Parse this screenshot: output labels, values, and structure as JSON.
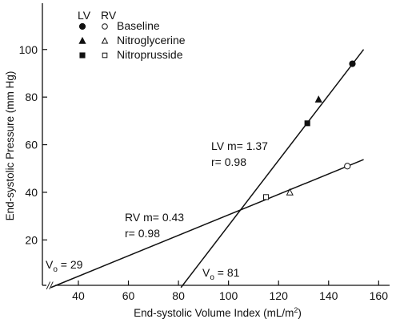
{
  "chart_data": {
    "type": "scatter",
    "xlabel_main": "End-systolic Volume Index (mL/m",
    "xlabel_sup": "2",
    "xlabel_tail": ")",
    "ylabel": "End-systolic Pressure (mm Hg)",
    "xlim": [
      20,
      170
    ],
    "ylim": [
      -5,
      115
    ],
    "x_ticks": [
      40,
      60,
      80,
      100,
      120,
      140,
      160
    ],
    "y_ticks": [
      20,
      40,
      60,
      80,
      100
    ],
    "grid": false,
    "legend": {
      "placement": "top-left",
      "header_lv": "LV",
      "header_rv": "RV",
      "items": [
        {
          "label": "Baseline",
          "lv_marker": "circle-filled",
          "rv_marker": "circle-open"
        },
        {
          "label": "Nitroglycerine",
          "lv_marker": "triangle-filled",
          "rv_marker": "triangle-open"
        },
        {
          "label": "Nitroprusside",
          "lv_marker": "square-filled",
          "rv_marker": "square-open"
        }
      ]
    },
    "series": [
      {
        "name": "LV",
        "slope": 1.37,
        "intercept_x": 81,
        "fit_x_range": [
          81,
          154
        ],
        "points": [
          {
            "x": 149.5,
            "y": 94,
            "marker": "circle-filled"
          },
          {
            "x": 136,
            "y": 79,
            "marker": "triangle-filled"
          },
          {
            "x": 131.5,
            "y": 69,
            "marker": "square-filled"
          }
        ]
      },
      {
        "name": "RV",
        "slope": 0.43,
        "intercept_x": 29,
        "fit_x_range": [
          29,
          154
        ],
        "points": [
          {
            "x": 147.5,
            "y": 51,
            "marker": "circle-open"
          },
          {
            "x": 124.5,
            "y": 40,
            "marker": "triangle-open"
          },
          {
            "x": 115,
            "y": 38,
            "marker": "square-open"
          }
        ]
      }
    ],
    "annotations": {
      "lv_slope": "LV m= 1.37",
      "lv_r": "r= 0.98",
      "rv_slope": "RV m= 0.43",
      "rv_r": "r= 0.98",
      "rv_vo_prefix": "V",
      "rv_vo_sub": "o",
      "rv_vo_value": " = 29",
      "lv_vo_prefix": "V",
      "lv_vo_sub": "o",
      "lv_vo_value": " = 81"
    },
    "axis_break": "//"
  }
}
